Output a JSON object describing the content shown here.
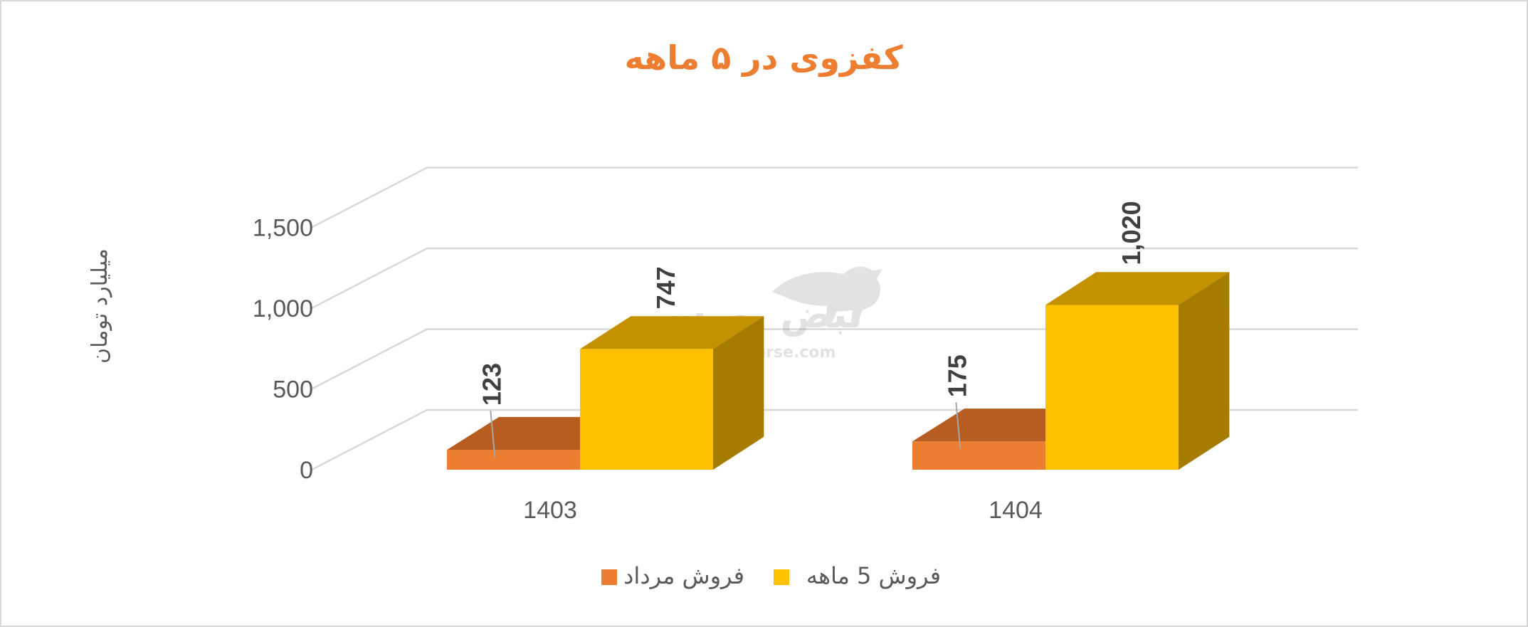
{
  "chart_data": {
    "type": "bar",
    "title": "کفزوی در ۵ ماهه",
    "ylabel": "میلیارد تومان",
    "categories": [
      "1403",
      "1404"
    ],
    "series": [
      {
        "name": "فروش مرداد",
        "values": [
          123,
          175
        ],
        "labels": [
          "123",
          "175"
        ]
      },
      {
        "name": "فروش 5  ماهه",
        "values": [
          747,
          1020
        ],
        "labels": [
          "747",
          "1,020"
        ]
      }
    ],
    "ylim": [
      0,
      1500
    ],
    "yticks": [
      "0",
      "500",
      "1,000",
      "1,500"
    ],
    "grid": true,
    "legend": "bottom",
    "style": "3d-column"
  },
  "colors": {
    "title": "#ed7d31",
    "series1_front": "#ed7d31",
    "series1_top": "#b75d22",
    "series2_front": "#ffc000",
    "series2_top": "#c49200",
    "series2_side": "#a67c00",
    "grid": "#d9d9d9"
  },
  "watermark": {
    "brand": "نبض بورس",
    "url": "nabzebourse.com"
  }
}
